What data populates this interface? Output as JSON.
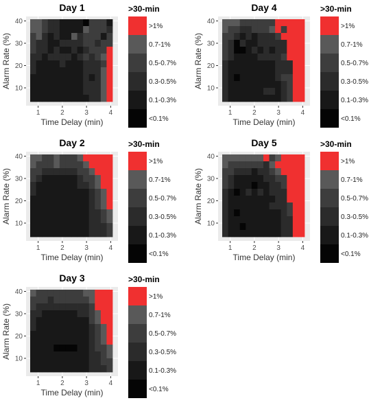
{
  "chart_data": [
    {
      "type": "heatmap",
      "title": "Day 1",
      "xlabel": "Time Delay (min)",
      "ylabel": "Alarm Rate (%)",
      "x_ticks": [
        "1",
        "2",
        "3",
        "4"
      ],
      "y_ticks": [
        "10",
        "20",
        "30",
        "40"
      ],
      "x_range": [
        0.5,
        4.3
      ],
      "y_range": [
        2,
        42
      ],
      "legend_title": ">30-min",
      "legend": [
        ">1%",
        "0.7-1%",
        "0.5-0.7%",
        "0.3-0.5%",
        "0.1-0.3%",
        "<0.1%"
      ],
      "color_map": [
        "#f03030",
        "#595959",
        "#3d3d3d",
        "#2b2b2b",
        "#181818",
        "#050505"
      ],
      "x_cells": 14,
      "y_cells": 12,
      "grid": [
        "11233444452224",
        "11233444412223",
        "21343441322242",
        "23344333322322",
        "23343443432220",
        "33433334323210",
        "34444344433320",
        "34444444433310",
        "44444444434310",
        "44444444433310",
        "44444444433310",
        "44444444443310"
      ]
    },
    {
      "type": "heatmap",
      "title": "Day 4",
      "xlabel": "Time Delay (min)",
      "ylabel": "Alarm Rate (%)",
      "x_ticks": [
        "1",
        "2",
        "3",
        "4"
      ],
      "y_ticks": [
        "10",
        "20",
        "30",
        "40"
      ],
      "x_range": [
        0.5,
        4.3
      ],
      "y_range": [
        2,
        42
      ],
      "legend_title": ">30-min",
      "legend": [
        ">1%",
        "0.7-1%",
        "0.5-0.7%",
        "0.3-0.5%",
        "0.1-0.3%",
        "<0.1%"
      ],
      "color_map": [
        "#f03030",
        "#595959",
        "#3d3d3d",
        "#2b2b2b",
        "#181818",
        "#050505"
      ],
      "x_cells": 14,
      "y_cells": 12,
      "grid": [
        "11122222200000",
        "12233222102000",
        "22343433320000",
        "23534433333000",
        "23554343433000",
        "23444433332000",
        "34444444433300",
        "34444444433300",
        "34544444432200",
        "34444444443200",
        "34444443343200",
        "34444444443200"
      ]
    },
    {
      "type": "heatmap",
      "title": "Day 2",
      "xlabel": "Time Delay (min)",
      "ylabel": "Alarm Rate (%)",
      "x_ticks": [
        "1",
        "2",
        "3",
        "4"
      ],
      "y_ticks": [
        "10",
        "20",
        "30",
        "40"
      ],
      "x_range": [
        0.5,
        4.3
      ],
      "y_range": [
        2,
        42
      ],
      "legend_title": ">30-min",
      "legend": [
        ">1%",
        "0.7-1%",
        "0.5-0.7%",
        "0.3-0.5%",
        "0.1-0.3%",
        "<0.1%"
      ],
      "color_map": [
        "#f03030",
        "#595959",
        "#3d3d3d",
        "#2b2b2b",
        "#181818",
        "#050505"
      ],
      "x_cells": 14,
      "y_cells": 12,
      "grid": [
        "11221222100000",
        "12221222210000",
        "22333333221000",
        "23444444322100",
        "34444444332100",
        "34444444443210",
        "44444444443210",
        "44444444443210",
        "44444444443321",
        "44444444443321",
        "44444444443332",
        "44444444443332"
      ]
    },
    {
      "type": "heatmap",
      "title": "Day 5",
      "xlabel": "Time Delay (min)",
      "ylabel": "Alarm Rate (%)",
      "x_ticks": [
        "1",
        "2",
        "3",
        "4"
      ],
      "y_ticks": [
        "10",
        "20",
        "30",
        "40"
      ],
      "x_range": [
        0.5,
        4.3
      ],
      "y_range": [
        2,
        42
      ],
      "legend_title": ">30-min",
      "legend": [
        ">1%",
        "0.7-1%",
        "0.5-0.7%",
        "0.3-0.5%",
        "0.1-0.3%",
        "<0.1%"
      ],
      "color_map": [
        "#f03030",
        "#595959",
        "#3d3d3d",
        "#2b2b2b",
        "#181818",
        "#050505"
      ],
      "x_cells": 14,
      "y_cells": 12,
      "grid": [
        "11111110210000",
        "12222223100000",
        "22333433210000",
        "23444443322000",
        "23444544332000",
        "34543434333000",
        "34444444433000",
        "34444444333200",
        "34544444443200",
        "34444444443300",
        "34454444443300",
        "34444444443300"
      ]
    },
    {
      "type": "heatmap",
      "title": "Day 3",
      "xlabel": "Time Delay (min)",
      "ylabel": "Alarm Rate (%)",
      "x_ticks": [
        "1",
        "2",
        "3",
        "4"
      ],
      "y_ticks": [
        "10",
        "20",
        "30",
        "40"
      ],
      "x_range": [
        0.5,
        4.3
      ],
      "y_range": [
        2,
        42
      ],
      "legend_title": ">30-min",
      "legend": [
        ">1%",
        "0.7-1%",
        "0.5-0.7%",
        "0.3-0.5%",
        "0.1-0.3%",
        "<0.1%"
      ],
      "color_map": [
        "#f03030",
        "#595959",
        "#3d3d3d",
        "#2b2b2b",
        "#181818",
        "#050505"
      ],
      "x_cells": 14,
      "y_cells": 12,
      "grid": [
        "12222222211000",
        "22232222221000",
        "23333333332000",
        "33444444332100",
        "34444444442100",
        "34444444443210",
        "44444444443210",
        "44444444443210",
        "44445555443221",
        "44444444443321",
        "44444444443322",
        "44444444443332"
      ]
    }
  ]
}
